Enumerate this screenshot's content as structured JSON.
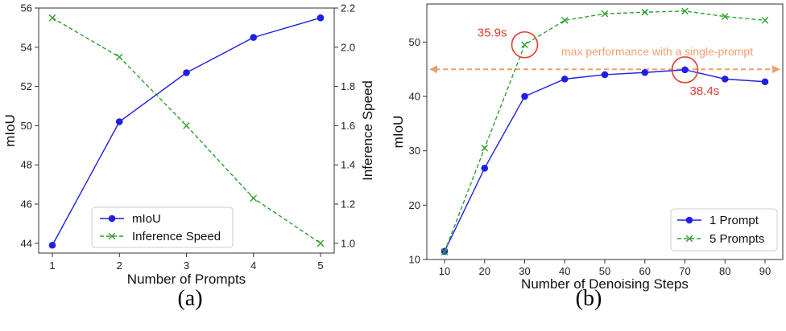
{
  "captions": {
    "a": "(a)",
    "b": "(b)"
  },
  "chart_data": [
    {
      "type": "line",
      "xlabel": "Number of Prompts",
      "ylabel": "mIoU",
      "y2label": "Inference Speed",
      "x": [
        1,
        2,
        3,
        4,
        5
      ],
      "ylim": [
        43.5,
        56
      ],
      "y2lim": [
        0.95,
        2.2
      ],
      "yticks": [
        44,
        46,
        48,
        50,
        52,
        54,
        56
      ],
      "y2ticks": [
        1.0,
        1.2,
        1.4,
        1.6,
        1.8,
        2.0,
        2.2
      ],
      "series": [
        {
          "name": "mIoU",
          "axis": "left",
          "color": "#1f1fe6",
          "marker": "circle",
          "linestyle": "solid",
          "values": [
            43.9,
            50.2,
            52.7,
            54.5,
            55.5
          ]
        },
        {
          "name": "Inference Speed",
          "axis": "right",
          "color": "#2ca02c",
          "marker": "x",
          "linestyle": "dashed",
          "values": [
            2.15,
            1.95,
            1.6,
            1.23,
            1.0
          ]
        }
      ],
      "legend": "lower-center",
      "grid": false
    },
    {
      "type": "line",
      "xlabel": "Number of Denoising Steps",
      "ylabel": "mIoU",
      "x": [
        10,
        20,
        30,
        40,
        50,
        60,
        70,
        80,
        90
      ],
      "ylim": [
        10,
        57
      ],
      "yticks": [
        10,
        20,
        30,
        40,
        50
      ],
      "series": [
        {
          "name": "1 Prompt",
          "color": "#1f1fe6",
          "marker": "circle",
          "linestyle": "solid",
          "values": [
            11.5,
            26.8,
            40.0,
            43.2,
            44.0,
            44.4,
            44.9,
            43.2,
            42.7
          ]
        },
        {
          "name": "5 Prompts",
          "color": "#2ca02c",
          "marker": "x",
          "linestyle": "dashed",
          "values": [
            11.4,
            30.5,
            49.5,
            54.0,
            55.2,
            55.5,
            55.7,
            54.7,
            54.0
          ]
        }
      ],
      "reference_line": {
        "y": 45,
        "label": "max performance with a single-prompt",
        "color": "#f0a070"
      },
      "annotations": [
        {
          "text": "35.9s",
          "x": 30,
          "y": 49.5,
          "color": "#e03c2c"
        },
        {
          "text": "38.4s",
          "x": 70,
          "y": 44.9,
          "color": "#e03c2c"
        }
      ],
      "legend": "lower-right",
      "grid": false
    }
  ]
}
